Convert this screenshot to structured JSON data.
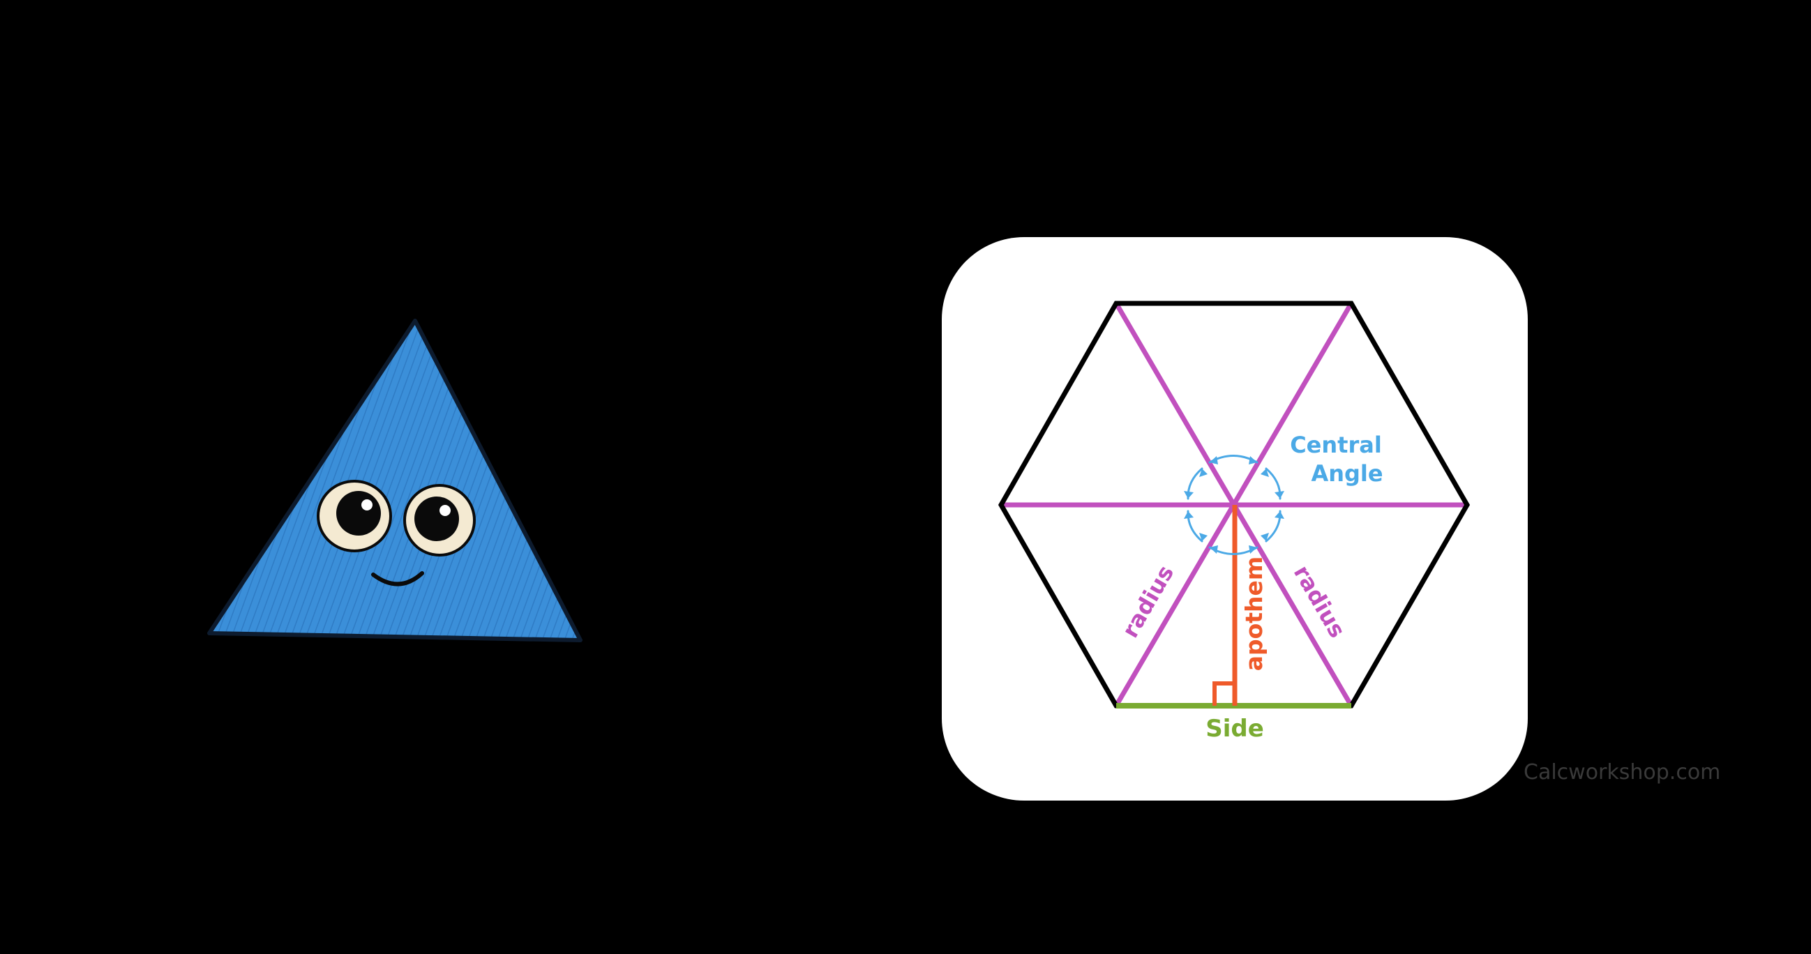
{
  "diagram": {
    "labels": {
      "central_angle_line1": "Central",
      "central_angle_line2": "Angle",
      "radius_left": "radius",
      "radius_right": "radius",
      "apothem": "apothem",
      "side": "Side"
    },
    "colors": {
      "background": "#000000",
      "card": "#ffffff",
      "hexagon_outline": "#000000",
      "radius": "#c150be",
      "apothem": "#ef5a2a",
      "side": "#7aab32",
      "central_angle": "#4ba9e6",
      "mascot_fill": "#3b8fd9"
    },
    "icons": [
      "right-angle-marker",
      "central-angle-arrows"
    ]
  },
  "mascot": {
    "shape": "triangle",
    "expression": "smiling"
  },
  "watermark": "Calcworkshop.com"
}
